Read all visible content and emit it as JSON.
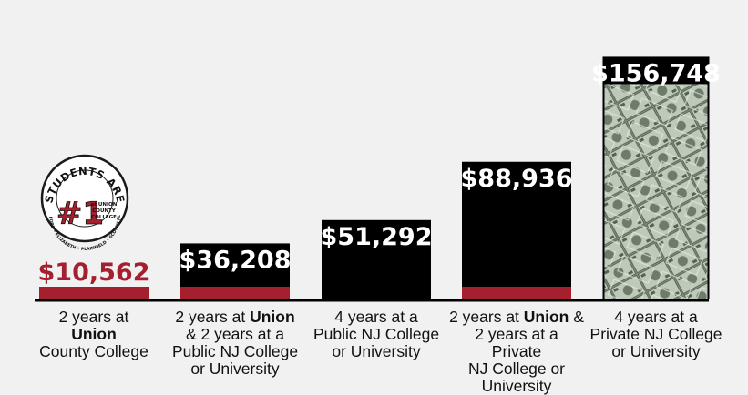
{
  "chart_data": {
    "type": "bar",
    "title": "",
    "xlabel": "",
    "ylabel": "",
    "ylim": [
      0,
      160000
    ],
    "grid": false,
    "legend": "none",
    "categories": [
      "2 years at Union County College",
      "2 years at Union & 2 years at a Public NJ College or University",
      "4 years at a Public NJ College or University",
      "2 years at Union & 2 years at a Private NJ College or University",
      "4 years at a Private NJ College or University"
    ],
    "values": [
      10562,
      36208,
      51292,
      88936,
      156748
    ],
    "value_labels": [
      "$10,562",
      "$36,208",
      "$51,292",
      "$88,936",
      "$156,748"
    ],
    "union_portion": [
      10562,
      10562,
      0,
      10562,
      0
    ],
    "captions": [
      [
        [
          "2 years at",
          ""
        ],
        [
          "",
          "Union"
        ],
        [
          "County College",
          ""
        ]
      ],
      [
        [
          "2 years at ",
          "Union"
        ],
        [
          "& 2 years at a",
          ""
        ],
        [
          "Public NJ College",
          ""
        ],
        [
          "or University",
          ""
        ]
      ],
      [
        [
          "4 years at a",
          ""
        ],
        [
          "Public NJ College",
          ""
        ],
        [
          "or University",
          ""
        ]
      ],
      [
        [
          "2 years at ",
          "Union",
          " &"
        ],
        [
          "2 years at a Private",
          ""
        ],
        [
          "NJ College or University",
          ""
        ]
      ],
      [
        [
          "4 years at a",
          ""
        ],
        [
          "Private NJ College",
          ""
        ],
        [
          "or University",
          ""
        ]
      ]
    ],
    "colors": {
      "bar": "#000000",
      "union": "#a4202f",
      "value_on_light": "#a4202f",
      "value_on_dark": "#ffffff",
      "money_green": "#8f9e8c",
      "axis": "#000000"
    }
  },
  "badge": {
    "arc_text": "STUDENTS ARE",
    "rank": "#1",
    "line1": "at UNION",
    "line2": "COUNTY",
    "line3": "COLLEGE",
    "ring_text": "CRANFORD • ELIZABETH • PLAINFIELD • SCOTCH PLAINS"
  }
}
